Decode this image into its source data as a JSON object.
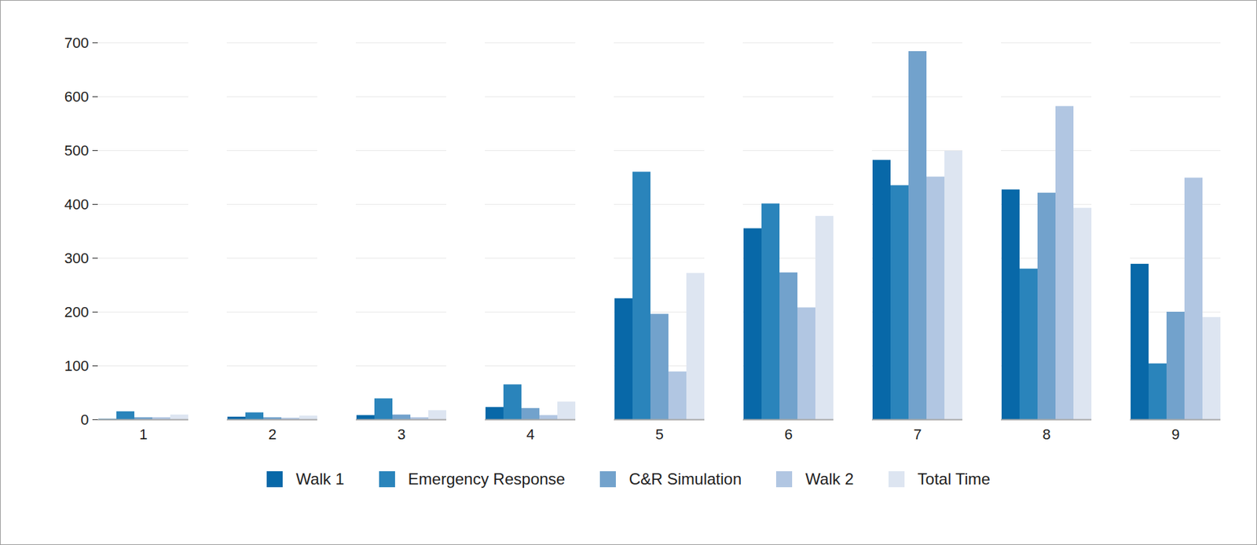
{
  "chart_data": {
    "type": "bar",
    "categories": [
      "1",
      "2",
      "3",
      "4",
      "5",
      "6",
      "7",
      "8",
      "9"
    ],
    "series": [
      {
        "name": "Walk 1",
        "color": "#0868a8",
        "values": [
          1,
          5,
          8,
          23,
          225,
          355,
          482,
          427,
          289
        ]
      },
      {
        "name": "Emergency Response",
        "color": "#2a84bb",
        "values": [
          15,
          13,
          39,
          65,
          460,
          401,
          435,
          280,
          104
        ]
      },
      {
        "name": "C&R Simulation",
        "color": "#72a2cc",
        "values": [
          4,
          4,
          9,
          21,
          196,
          273,
          684,
          421,
          200
        ]
      },
      {
        "name": "Walk 2",
        "color": "#b1c6e2",
        "values": [
          4,
          3,
          4,
          8,
          89,
          208,
          451,
          582,
          449
        ]
      },
      {
        "name": "Total Time",
        "color": "#dde5f1",
        "values": [
          9,
          7,
          17,
          33,
          272,
          378,
          499,
          393,
          190
        ]
      }
    ],
    "ylim": [
      0,
      700
    ],
    "yticks": [
      0,
      100,
      200,
      300,
      400,
      500,
      600,
      700
    ],
    "grid": true,
    "legend": "bottom"
  }
}
